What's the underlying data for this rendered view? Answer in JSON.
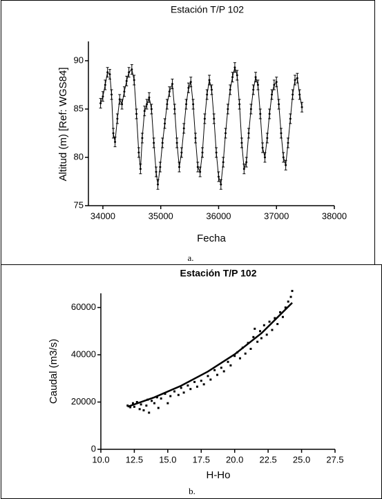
{
  "chart_data": [
    {
      "type": "line",
      "title": "Estación T/P 102",
      "xlabel": "Fecha",
      "ylabel": "Altitud (m) [Ref: WGS84]",
      "caption": "a.",
      "color": "#000000",
      "error": 0.5,
      "x": [
        33960,
        34000,
        34040,
        34080,
        34120,
        34150,
        34180,
        34210,
        34250,
        34290,
        34330,
        34370,
        34410,
        34450,
        34500,
        34540,
        34580,
        34620,
        34650,
        34680,
        34720,
        34760,
        34800,
        34840,
        34880,
        34920,
        34950,
        34990,
        35030,
        35070,
        35110,
        35150,
        35200,
        35240,
        35280,
        35320,
        35360,
        35400,
        35440,
        35480,
        35520,
        35560,
        35600,
        35640,
        35680,
        35720,
        35760,
        35800,
        35840,
        35880,
        35920,
        35960,
        36000,
        36040,
        36080,
        36120,
        36160,
        36200,
        36240,
        36280,
        36320,
        36360,
        36400,
        36440,
        36480,
        36520,
        36560,
        36600,
        36640,
        36680,
        36720,
        36760,
        36800,
        36840,
        36880,
        36920,
        36960,
        37000,
        37040,
        37080,
        37120,
        37160,
        37200,
        37240,
        37280,
        37320,
        37360,
        37400,
        37440
      ],
      "values": [
        85.6,
        86.3,
        87.5,
        88.8,
        88.6,
        86.5,
        82.5,
        81.6,
        84.0,
        86.0,
        85.5,
        86.8,
        87.9,
        88.8,
        89.1,
        88.0,
        84.5,
        80.5,
        78.8,
        82.0,
        84.8,
        85.5,
        86.2,
        85.0,
        81.5,
        78.5,
        77.2,
        79.0,
        81.5,
        83.5,
        85.5,
        86.8,
        87.6,
        85.0,
        81.5,
        79.0,
        80.5,
        83.0,
        85.5,
        87.2,
        87.8,
        85.5,
        82.0,
        79.0,
        78.5,
        80.5,
        84.0,
        86.5,
        88.0,
        87.0,
        84.0,
        80.5,
        78.0,
        77.2,
        79.5,
        82.5,
        85.0,
        87.0,
        88.3,
        89.3,
        88.5,
        85.5,
        81.5,
        78.8,
        79.5,
        82.5,
        85.0,
        87.0,
        88.3,
        87.5,
        84.5,
        81.0,
        80.0,
        82.0,
        84.5,
        86.5,
        87.5,
        87.8,
        85.5,
        82.5,
        80.0,
        79.2,
        81.5,
        84.0,
        86.5,
        88.0,
        88.2,
        86.5,
        85.2
      ],
      "xlim": [
        33750,
        38000
      ],
      "xticks": [
        34000,
        35000,
        36000,
        37000,
        38000
      ],
      "ylim": [
        75,
        92
      ],
      "yticks": [
        75,
        80,
        85,
        90
      ]
    },
    {
      "type": "scatter",
      "title": "Estación T/P 102",
      "xlabel": "H-Ho",
      "ylabel": "Caudal (m3/s)",
      "caption": "b.",
      "series": [
        {
          "type": "scatter",
          "color": "#000000",
          "x": [
            12.0,
            12.2,
            12.4,
            12.5,
            12.7,
            12.9,
            13.0,
            13.2,
            13.4,
            13.5,
            13.6,
            13.8,
            14.0,
            14.2,
            14.3,
            14.5,
            14.8,
            15.0,
            15.2,
            15.5,
            15.8,
            16.0,
            16.2,
            16.5,
            16.7,
            17.0,
            17.2,
            17.5,
            17.7,
            18.0,
            18.2,
            18.5,
            18.7,
            19.0,
            19.2,
            19.5,
            19.7,
            20.0,
            20.2,
            20.4,
            20.6,
            20.8,
            21.0,
            21.2,
            21.4,
            21.5,
            21.7,
            21.9,
            22.0,
            22.2,
            22.4,
            22.6,
            22.8,
            23.0,
            23.2,
            23.4,
            23.6,
            23.8,
            24.0,
            24.2,
            24.3
          ],
          "values": [
            18500,
            17800,
            19500,
            18000,
            20000,
            17000,
            19000,
            16500,
            18500,
            21000,
            15500,
            20500,
            19500,
            22000,
            17500,
            21500,
            23500,
            19500,
            22500,
            24500,
            23000,
            26000,
            24000,
            27000,
            25500,
            28500,
            26500,
            29000,
            27500,
            31000,
            29500,
            33500,
            31500,
            34500,
            33000,
            37000,
            35500,
            39500,
            41000,
            38500,
            43000,
            40500,
            45000,
            42500,
            47500,
            51000,
            45500,
            50000,
            47000,
            52500,
            48500,
            54000,
            50500,
            55500,
            53000,
            58000,
            56000,
            60000,
            62500,
            64500,
            67000
          ]
        },
        {
          "type": "line",
          "color": "#000000",
          "x": [
            12.0,
            14.0,
            16.0,
            18.0,
            20.0,
            22.0,
            24.3
          ],
          "values": [
            18000,
            22000,
            26900,
            32900,
            40200,
            49100,
            62000
          ]
        }
      ],
      "xlim": [
        10,
        27.5
      ],
      "xticks": [
        {
          "value": 10,
          "label": "10.0"
        },
        {
          "value": 12.5,
          "label": "12.5"
        },
        {
          "value": 15,
          "label": "15.0"
        },
        {
          "value": 17.5,
          "label": "17.5"
        },
        {
          "value": 20,
          "label": "20.0"
        },
        {
          "value": 22.5,
          "label": "22.5"
        },
        {
          "value": 25,
          "label": "25.0"
        },
        {
          "value": 27.5,
          "label": "27.5"
        }
      ],
      "ylim": [
        0,
        66000
      ],
      "yticks": [
        0,
        20000,
        40000,
        60000
      ]
    }
  ]
}
